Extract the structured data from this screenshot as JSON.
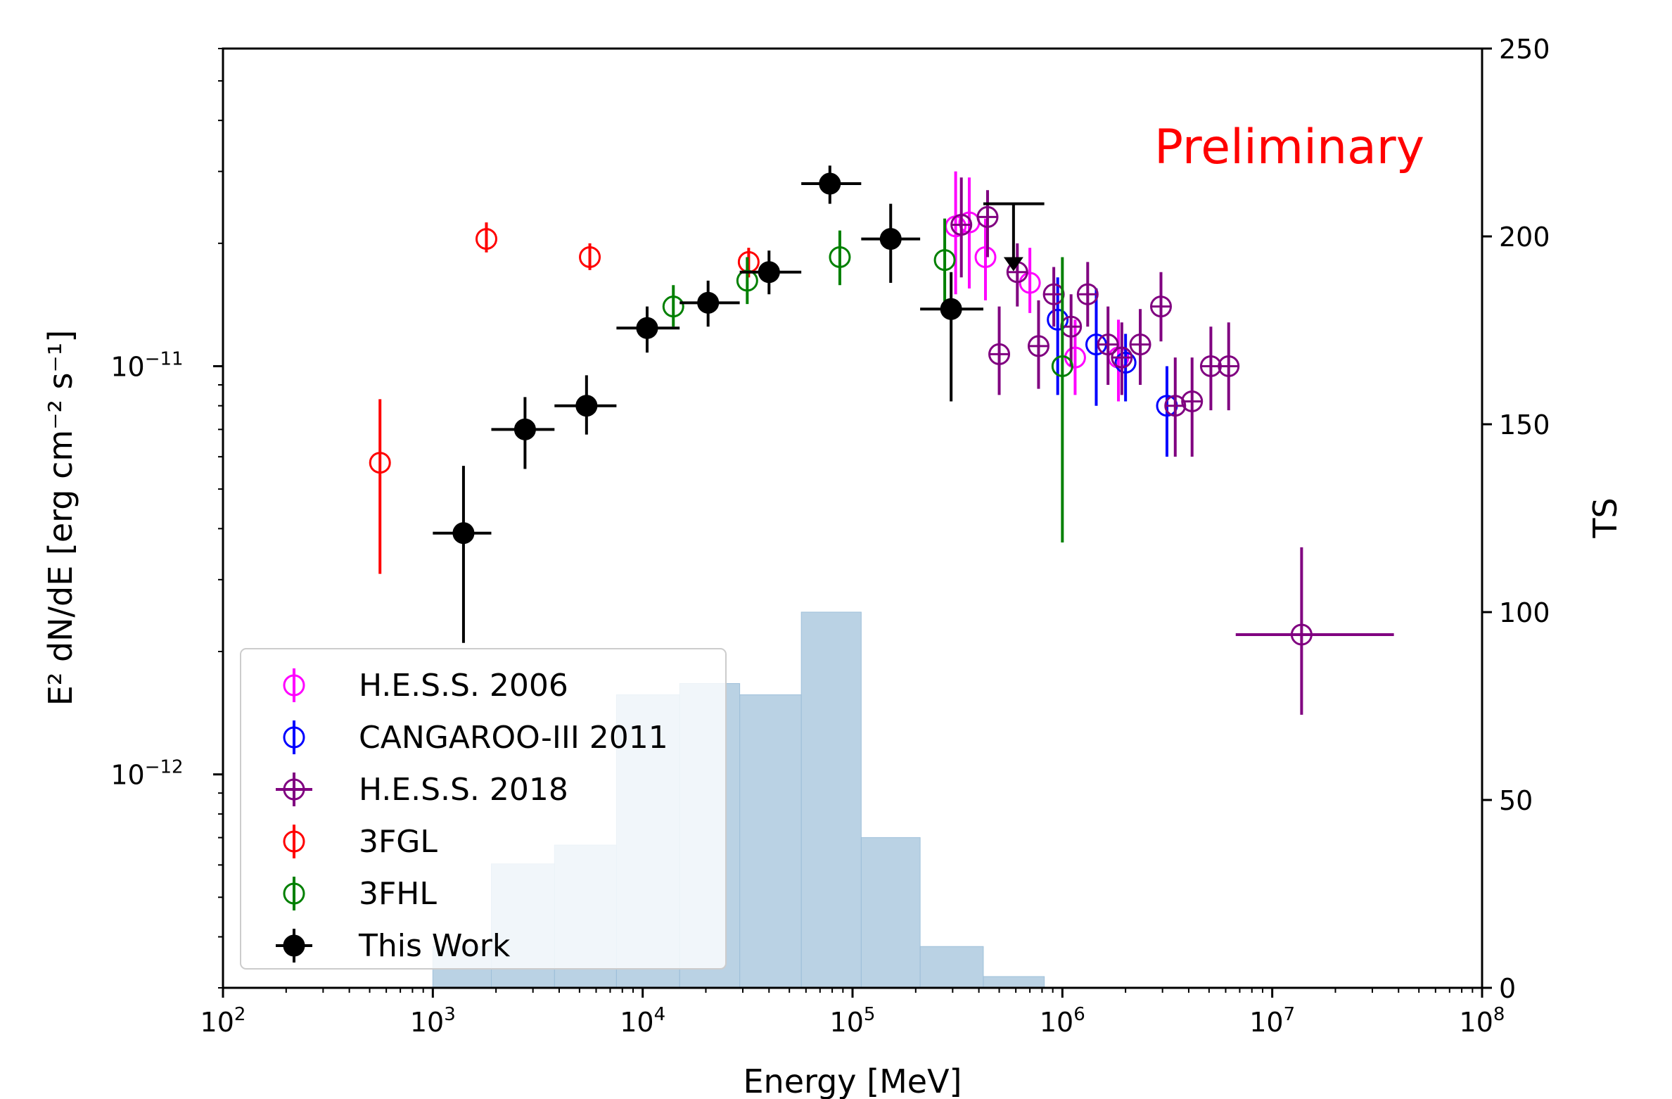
{
  "chart_data": {
    "type": "scatter",
    "annotation": "Preliminary",
    "xlabel": "Energy [MeV]",
    "ylabel": "E² dN/dE [erg cm⁻² s⁻¹]",
    "y2label": "TS",
    "x_scale": "log",
    "y_scale": "log",
    "xlim": [
      100,
      100000000
    ],
    "ylim": [
      3e-13,
      6e-11
    ],
    "y2lim": [
      0,
      250
    ],
    "x_ticks": [
      100,
      1000,
      10000,
      100000,
      1000000,
      10000000,
      100000000
    ],
    "x_tick_labels": [
      {
        "base": "10",
        "exp": "2"
      },
      {
        "base": "10",
        "exp": "3"
      },
      {
        "base": "10",
        "exp": "4"
      },
      {
        "base": "10",
        "exp": "5"
      },
      {
        "base": "10",
        "exp": "6"
      },
      {
        "base": "10",
        "exp": "7"
      },
      {
        "base": "10",
        "exp": "8"
      }
    ],
    "y_ticks": [
      1e-12,
      1e-11
    ],
    "y_tick_labels": [
      {
        "base": "10",
        "exp": "−12"
      },
      {
        "base": "10",
        "exp": "−11"
      }
    ],
    "y2_ticks": [
      0,
      50,
      100,
      150,
      200,
      250
    ],
    "y2_tick_labels": [
      "0",
      "50",
      "100",
      "150",
      "200",
      "250"
    ],
    "legend_position": "lower-left",
    "ts_histogram": {
      "color": "#8fb6d4",
      "bins": [
        {
          "lo": 1000,
          "hi": 1900,
          "ts": 11
        },
        {
          "lo": 1900,
          "hi": 3800,
          "ts": 33
        },
        {
          "lo": 3800,
          "hi": 7500,
          "ts": 38
        },
        {
          "lo": 7500,
          "hi": 15000,
          "ts": 78
        },
        {
          "lo": 15000,
          "hi": 29000,
          "ts": 81
        },
        {
          "lo": 29000,
          "hi": 57000,
          "ts": 78
        },
        {
          "lo": 57000,
          "hi": 110000,
          "ts": 100
        },
        {
          "lo": 110000,
          "hi": 210000,
          "ts": 40
        },
        {
          "lo": 210000,
          "hi": 420000,
          "ts": 11
        },
        {
          "lo": 420000,
          "hi": 820000,
          "ts": 3
        }
      ]
    },
    "series": [
      {
        "name": "H.E.S.S. 2006",
        "color": "#ff00ff",
        "marker": "open",
        "cross": false,
        "points": [
          {
            "x": 310000,
            "y": 2.2e-11,
            "ylo": 1.5e-11,
            "yhi": 3e-11
          },
          {
            "x": 360000,
            "y": 2.25e-11,
            "ylo": 1.55e-11,
            "yhi": 2.9e-11
          },
          {
            "x": 430000,
            "y": 1.85e-11,
            "ylo": 1.45e-11,
            "yhi": 2.3e-11
          },
          {
            "x": 700000,
            "y": 1.6e-11,
            "ylo": 1.35e-11,
            "yhi": 1.95e-11
          },
          {
            "x": 1150000,
            "y": 1.05e-11,
            "ylo": 8.5e-12,
            "yhi": 1.3e-11
          },
          {
            "x": 1850000,
            "y": 1.05e-11,
            "ylo": 8.2e-12,
            "yhi": 1.3e-11
          }
        ]
      },
      {
        "name": "CANGAROO-III 2011",
        "color": "#0000ff",
        "marker": "open",
        "cross": false,
        "points": [
          {
            "x": 950000,
            "y": 1.3e-11,
            "ylo": 8.5e-12,
            "yhi": 1.65e-11
          },
          {
            "x": 1450000,
            "y": 1.13e-11,
            "ylo": 8e-12,
            "yhi": 1.55e-11
          },
          {
            "x": 2000000,
            "y": 1.02e-11,
            "ylo": 8.2e-12,
            "yhi": 1.2e-11
          },
          {
            "x": 3150000,
            "y": 8e-12,
            "ylo": 6e-12,
            "yhi": 1e-11
          }
        ]
      },
      {
        "name": "H.E.S.S. 2018",
        "color": "#800080",
        "marker": "open",
        "cross": true,
        "points": [
          {
            "x": 330000,
            "y": 2.22e-11,
            "ylo": 1.65e-11,
            "yhi": 2.9e-11
          },
          {
            "x": 440000,
            "y": 2.32e-11,
            "ylo": 1.85e-11,
            "yhi": 2.7e-11
          },
          {
            "x": 610000,
            "y": 1.7e-11,
            "ylo": 1.4e-11,
            "yhi": 2e-11
          },
          {
            "x": 500000,
            "y": 1.07e-11,
            "ylo": 8.5e-12,
            "yhi": 1.4e-11
          },
          {
            "x": 770000,
            "y": 1.12e-11,
            "ylo": 8.8e-12,
            "yhi": 1.45e-11
          },
          {
            "x": 910000,
            "y": 1.5e-11,
            "ylo": 1.25e-11,
            "yhi": 1.75e-11
          },
          {
            "x": 1100000,
            "y": 1.25e-11,
            "ylo": 1e-11,
            "yhi": 1.5e-11
          },
          {
            "x": 1320000,
            "y": 1.5e-11,
            "ylo": 1.25e-11,
            "yhi": 1.8e-11
          },
          {
            "x": 1650000,
            "y": 1.13e-11,
            "ylo": 9e-12,
            "yhi": 1.4e-11
          },
          {
            "x": 1920000,
            "y": 1.05e-11,
            "ylo": 8.5e-12,
            "yhi": 1.28e-11
          },
          {
            "x": 2350000,
            "y": 1.13e-11,
            "ylo": 9e-12,
            "yhi": 1.38e-11
          },
          {
            "x": 2950000,
            "y": 1.4e-11,
            "ylo": 1.15e-11,
            "yhi": 1.7e-11
          },
          {
            "x": 3450000,
            "y": 8e-12,
            "ylo": 6e-12,
            "yhi": 1.05e-11
          },
          {
            "x": 4150000,
            "y": 8.2e-12,
            "ylo": 6e-12,
            "yhi": 1.05e-11
          },
          {
            "x": 5100000,
            "y": 1e-11,
            "ylo": 7.8e-12,
            "yhi": 1.25e-11
          },
          {
            "x": 6200000,
            "y": 1e-11,
            "ylo": 7.8e-12,
            "yhi": 1.28e-11
          },
          {
            "x": 13800000,
            "y": 2.2e-12,
            "ylo": 1.4e-12,
            "yhi": 3.6e-12,
            "xlo": 6700000,
            "xhi": 38000000
          }
        ]
      },
      {
        "name": "3FGL",
        "color": "#ff0000",
        "marker": "open",
        "cross": false,
        "points": [
          {
            "x": 560,
            "y": 5.8e-12,
            "ylo": 3.1e-12,
            "yhi": 8.3e-12
          },
          {
            "x": 1800,
            "y": 2.05e-11,
            "ylo": 1.9e-11,
            "yhi": 2.25e-11
          },
          {
            "x": 5600,
            "y": 1.85e-11,
            "ylo": 1.72e-11,
            "yhi": 2e-11
          },
          {
            "x": 32000,
            "y": 1.8e-11,
            "ylo": 1.65e-11,
            "yhi": 1.95e-11
          }
        ]
      },
      {
        "name": "3FHL",
        "color": "#008000",
        "marker": "open",
        "cross": false,
        "points": [
          {
            "x": 14000,
            "y": 1.4e-11,
            "ylo": 1.25e-11,
            "yhi": 1.58e-11
          },
          {
            "x": 31500,
            "y": 1.62e-11,
            "ylo": 1.42e-11,
            "yhi": 1.85e-11
          },
          {
            "x": 87000,
            "y": 1.85e-11,
            "ylo": 1.58e-11,
            "yhi": 2.15e-11
          },
          {
            "x": 275000,
            "y": 1.82e-11,
            "ylo": 1.4e-11,
            "yhi": 2.3e-11
          },
          {
            "x": 1000000,
            "y": 1e-11,
            "ylo": 3.7e-12,
            "yhi": 1.85e-11
          }
        ]
      },
      {
        "name": "This Work",
        "color": "#000000",
        "marker": "filled",
        "cross": false,
        "points": [
          {
            "x": 1400,
            "y": 3.9e-12,
            "ylo": 2.1e-12,
            "yhi": 5.7e-12,
            "xlo": 1000,
            "xhi": 1900
          },
          {
            "x": 2750,
            "y": 7e-12,
            "ylo": 5.6e-12,
            "yhi": 8.4e-12,
            "xlo": 1900,
            "xhi": 3800
          },
          {
            "x": 5400,
            "y": 8e-12,
            "ylo": 6.8e-12,
            "yhi": 9.5e-12,
            "xlo": 3800,
            "xhi": 7500
          },
          {
            "x": 10500,
            "y": 1.24e-11,
            "ylo": 1.08e-11,
            "yhi": 1.4e-11,
            "xlo": 7500,
            "xhi": 15000
          },
          {
            "x": 20500,
            "y": 1.43e-11,
            "ylo": 1.25e-11,
            "yhi": 1.62e-11,
            "xlo": 15000,
            "xhi": 29000
          },
          {
            "x": 40000,
            "y": 1.7e-11,
            "ylo": 1.5e-11,
            "yhi": 1.92e-11,
            "xlo": 29000,
            "xhi": 57000
          },
          {
            "x": 78000,
            "y": 2.8e-11,
            "ylo": 2.5e-11,
            "yhi": 3.1e-11,
            "xlo": 57000,
            "xhi": 110000
          },
          {
            "x": 152000,
            "y": 2.05e-11,
            "ylo": 1.6e-11,
            "yhi": 2.5e-11,
            "xlo": 110000,
            "xhi": 210000
          },
          {
            "x": 295000,
            "y": 1.38e-11,
            "ylo": 8.2e-12,
            "yhi": 1.7e-11,
            "xlo": 210000,
            "xhi": 420000
          },
          {
            "x": 585000,
            "y": 1.75e-11,
            "ylo": 1.75e-11,
            "yhi": 2.5e-11,
            "xlo": 420000,
            "xhi": 820000,
            "upper_limit": true
          }
        ]
      }
    ]
  }
}
